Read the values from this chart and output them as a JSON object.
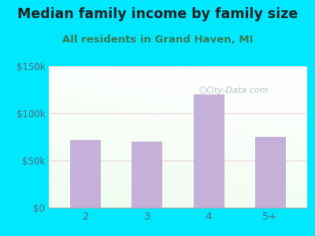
{
  "title": "Median family income by family size",
  "subtitle": "All residents in Grand Haven, MI",
  "categories": [
    "2",
    "3",
    "4",
    "5+"
  ],
  "values": [
    72000,
    70000,
    120000,
    75000
  ],
  "bar_color": "#c4b0d8",
  "ylim": [
    0,
    150000
  ],
  "yticks": [
    0,
    50000,
    100000,
    150000
  ],
  "ytick_labels": [
    "$0",
    "$50k",
    "$100k",
    "$150k"
  ],
  "outer_bg": "#00e8ff",
  "title_color": "#222222",
  "subtitle_color": "#3a7a50",
  "tick_color": "#556677",
  "watermark_text": "City-Data.com",
  "title_fontsize": 12.5,
  "subtitle_fontsize": 9.5
}
